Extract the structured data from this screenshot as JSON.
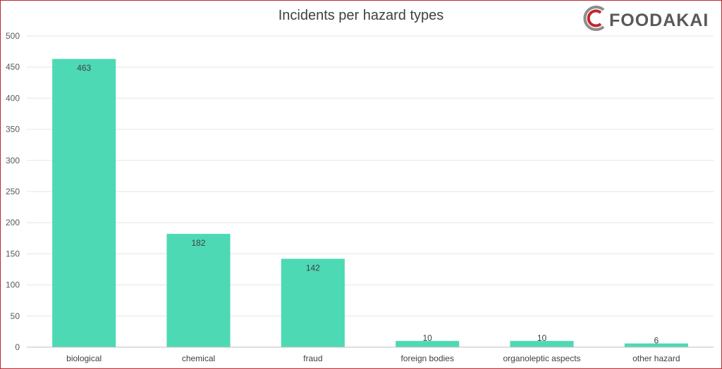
{
  "logo": {
    "text": "FOODAKAI",
    "ring_color": "#c0272d",
    "ring_grey": "#8c8c8c"
  },
  "chart_data": {
    "type": "bar",
    "title": "Incidents per hazard types",
    "xlabel": "",
    "ylabel": "",
    "categories": [
      "biological",
      "chemical",
      "fraud",
      "foreign bodies",
      "organoleptic aspects",
      "other hazard"
    ],
    "values": [
      463,
      182,
      142,
      10,
      10,
      6
    ],
    "data_labels": [
      "463",
      "182",
      "142",
      "10",
      "10",
      "6"
    ],
    "ylim": [
      0,
      500
    ],
    "yticks": [
      0,
      50,
      100,
      150,
      200,
      250,
      300,
      350,
      400,
      450,
      500
    ],
    "grid": true,
    "legend": "none",
    "bar_color": "#4dd9b4",
    "frame_color": "#c0272d"
  }
}
